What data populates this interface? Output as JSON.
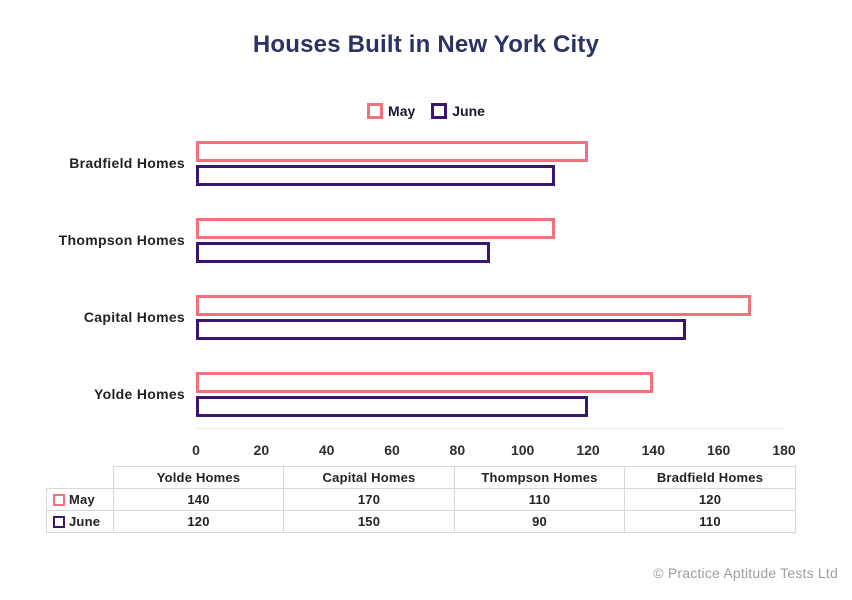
{
  "title": "Houses Built in New York City",
  "legend": {
    "items": [
      {
        "label": "May",
        "color": "#f2707e"
      },
      {
        "label": "June",
        "color": "#3a1572"
      }
    ]
  },
  "chart_data": {
    "type": "bar",
    "orientation": "horizontal",
    "title": "Houses Built in New York City",
    "categories": [
      "Bradfield Homes",
      "Thompson Homes",
      "Capital Homes",
      "Yolde Homes"
    ],
    "series": [
      {
        "name": "May",
        "color": "#f2707e",
        "values": [
          120,
          110,
          170,
          140
        ]
      },
      {
        "name": "June",
        "color": "#3a1572",
        "values": [
          110,
          90,
          150,
          120
        ]
      }
    ],
    "xlim": [
      0,
      180
    ],
    "x_ticks": [
      0,
      20,
      40,
      60,
      80,
      100,
      120,
      140,
      160,
      180
    ],
    "xlabel": "",
    "ylabel": "",
    "grid": false,
    "legend_position": "top-center",
    "bar_fill": "#ffffff"
  },
  "table": {
    "columns": [
      "",
      "Yolde Homes",
      "Capital Homes",
      "Thompson Homes",
      "Bradfield Homes"
    ],
    "rows": [
      {
        "label": "May",
        "color": "#f2707e",
        "values": [
          "140",
          "170",
          "110",
          "120"
        ]
      },
      {
        "label": "June",
        "color": "#3a1572",
        "values": [
          "120",
          "150",
          "90",
          "110"
        ]
      }
    ]
  },
  "footer": {
    "copyright": "© Practice Aptitude Tests Ltd"
  }
}
